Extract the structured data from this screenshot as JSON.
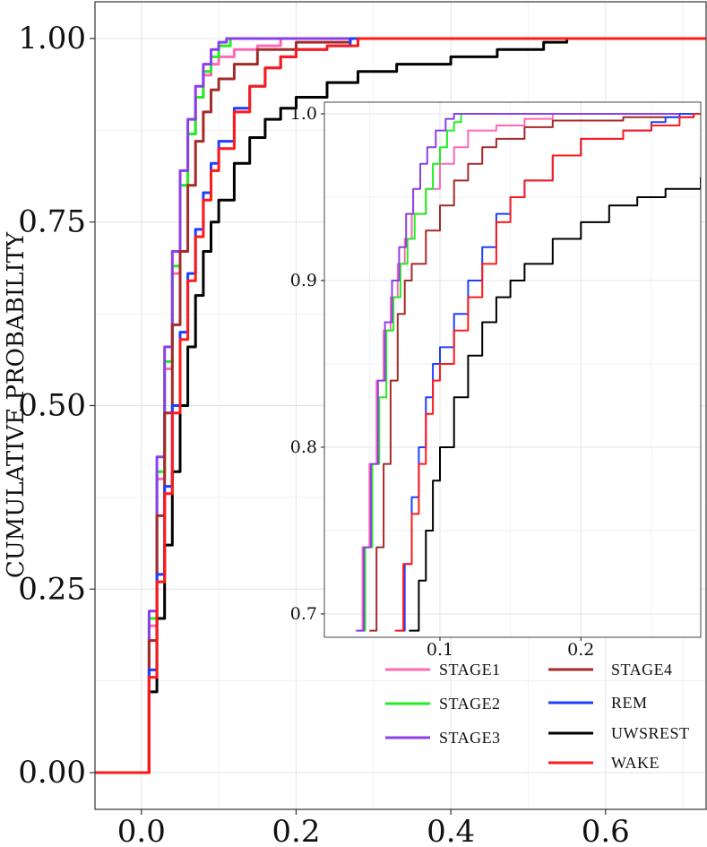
{
  "chart_data": [
    {
      "type": "line",
      "role": "main",
      "xlabel": "",
      "ylabel": "CUMULATIVE PROBABILITY",
      "xlim": [
        -0.06,
        0.73
      ],
      "ylim": [
        -0.05,
        1.05
      ],
      "x_ticks": [
        0.0,
        0.2,
        0.4,
        0.6
      ],
      "x_tick_labels": [
        "0.0",
        "0.2",
        "0.4",
        "0.6"
      ],
      "y_ticks": [
        0.0,
        0.25,
        0.5,
        0.75,
        1.0
      ],
      "y_tick_labels": [
        "0.00",
        "0.25",
        "0.50",
        "0.75",
        "1.00"
      ],
      "grid": true,
      "series": [
        {
          "name": "STAGE1",
          "color": "#ff69b4",
          "points": [
            [
              -0.06,
              0
            ],
            [
              0,
              0
            ],
            [
              0.01,
              0.2
            ],
            [
              0.02,
              0.4
            ],
            [
              0.03,
              0.55
            ],
            [
              0.04,
              0.68
            ],
            [
              0.05,
              0.8
            ],
            [
              0.06,
              0.87
            ],
            [
              0.07,
              0.92
            ],
            [
              0.08,
              0.95
            ],
            [
              0.09,
              0.965
            ],
            [
              0.1,
              0.975
            ],
            [
              0.12,
              0.985
            ],
            [
              0.15,
              0.99
            ],
            [
              0.18,
              1.0
            ],
            [
              0.73,
              1.0
            ]
          ]
        },
        {
          "name": "STAGE2",
          "color": "#22ee22",
          "points": [
            [
              -0.06,
              0
            ],
            [
              0,
              0
            ],
            [
              0.01,
              0.21
            ],
            [
              0.02,
              0.41
            ],
            [
              0.03,
              0.56
            ],
            [
              0.04,
              0.69
            ],
            [
              0.05,
              0.8
            ],
            [
              0.06,
              0.87
            ],
            [
              0.07,
              0.92
            ],
            [
              0.08,
              0.955
            ],
            [
              0.09,
              0.975
            ],
            [
              0.1,
              0.99
            ],
            [
              0.115,
              1.0
            ],
            [
              0.73,
              1.0
            ]
          ]
        },
        {
          "name": "STAGE3",
          "color": "#8b3fe8",
          "points": [
            [
              -0.06,
              0
            ],
            [
              0,
              0
            ],
            [
              0.01,
              0.22
            ],
            [
              0.02,
              0.43
            ],
            [
              0.03,
              0.58
            ],
            [
              0.04,
              0.71
            ],
            [
              0.05,
              0.82
            ],
            [
              0.06,
              0.89
            ],
            [
              0.07,
              0.935
            ],
            [
              0.08,
              0.965
            ],
            [
              0.09,
              0.985
            ],
            [
              0.1,
              0.995
            ],
            [
              0.11,
              1.0
            ],
            [
              0.73,
              1.0
            ]
          ]
        },
        {
          "name": "STAGE4",
          "color": "#a52a2a",
          "points": [
            [
              -0.06,
              0
            ],
            [
              0,
              0
            ],
            [
              0.01,
              0.18
            ],
            [
              0.02,
              0.35
            ],
            [
              0.03,
              0.49
            ],
            [
              0.04,
              0.61
            ],
            [
              0.05,
              0.71
            ],
            [
              0.06,
              0.8
            ],
            [
              0.07,
              0.86
            ],
            [
              0.08,
              0.9
            ],
            [
              0.09,
              0.93
            ],
            [
              0.1,
              0.945
            ],
            [
              0.12,
              0.965
            ],
            [
              0.15,
              0.985
            ],
            [
              0.2,
              0.995
            ],
            [
              0.27,
              1.0
            ],
            [
              0.73,
              1.0
            ]
          ]
        },
        {
          "name": "REM",
          "color": "#1f3fff",
          "points": [
            [
              -0.06,
              0
            ],
            [
              0,
              0
            ],
            [
              0.01,
              0.14
            ],
            [
              0.02,
              0.27
            ],
            [
              0.03,
              0.39
            ],
            [
              0.04,
              0.5
            ],
            [
              0.05,
              0.6
            ],
            [
              0.06,
              0.68
            ],
            [
              0.07,
              0.74
            ],
            [
              0.08,
              0.79
            ],
            [
              0.09,
              0.83
            ],
            [
              0.1,
              0.86
            ],
            [
              0.12,
              0.905
            ],
            [
              0.14,
              0.935
            ],
            [
              0.16,
              0.96
            ],
            [
              0.18,
              0.975
            ],
            [
              0.2,
              0.985
            ],
            [
              0.24,
              0.99
            ],
            [
              0.27,
              1.0
            ],
            [
              0.73,
              1.0
            ]
          ]
        },
        {
          "name": "UWSREST",
          "color": "#000000",
          "points": [
            [
              -0.06,
              0
            ],
            [
              0,
              0
            ],
            [
              0.01,
              0.11
            ],
            [
              0.02,
              0.21
            ],
            [
              0.03,
              0.31
            ],
            [
              0.04,
              0.41
            ],
            [
              0.05,
              0.5
            ],
            [
              0.06,
              0.58
            ],
            [
              0.07,
              0.65
            ],
            [
              0.08,
              0.71
            ],
            [
              0.09,
              0.75
            ],
            [
              0.1,
              0.78
            ],
            [
              0.12,
              0.83
            ],
            [
              0.14,
              0.865
            ],
            [
              0.16,
              0.89
            ],
            [
              0.18,
              0.905
            ],
            [
              0.2,
              0.92
            ],
            [
              0.24,
              0.94
            ],
            [
              0.28,
              0.955
            ],
            [
              0.33,
              0.965
            ],
            [
              0.4,
              0.975
            ],
            [
              0.46,
              0.985
            ],
            [
              0.52,
              0.995
            ],
            [
              0.55,
              1.0
            ],
            [
              0.73,
              1.0
            ]
          ]
        },
        {
          "name": "WAKE",
          "color": "#ff1a1a",
          "points": [
            [
              -0.06,
              0
            ],
            [
              0,
              0
            ],
            [
              0.01,
              0.13
            ],
            [
              0.02,
              0.26
            ],
            [
              0.03,
              0.38
            ],
            [
              0.04,
              0.49
            ],
            [
              0.05,
              0.59
            ],
            [
              0.06,
              0.67
            ],
            [
              0.07,
              0.73
            ],
            [
              0.08,
              0.78
            ],
            [
              0.09,
              0.82
            ],
            [
              0.1,
              0.85
            ],
            [
              0.12,
              0.9
            ],
            [
              0.14,
              0.935
            ],
            [
              0.16,
              0.96
            ],
            [
              0.18,
              0.975
            ],
            [
              0.2,
              0.985
            ],
            [
              0.24,
              0.99
            ],
            [
              0.28,
              1.0
            ],
            [
              0.73,
              1.0
            ]
          ]
        }
      ]
    },
    {
      "type": "line",
      "role": "inset",
      "xlabel": "",
      "ylabel": "",
      "xlim": [
        0.018,
        0.285
      ],
      "ylim": [
        0.686,
        1.007
      ],
      "x_ticks": [
        0.1,
        0.2
      ],
      "x_tick_labels": [
        "0.1",
        "0.2"
      ],
      "y_ticks": [
        0.7,
        0.8,
        0.9,
        1.0
      ],
      "y_tick_labels": [
        "0.7",
        "0.8",
        "0.9",
        "1.0"
      ],
      "grid": true,
      "series": [
        {
          "name": "STAGE1",
          "color": "#ff69b4",
          "points": [
            [
              0.04,
              0.69
            ],
            [
              0.045,
              0.74
            ],
            [
              0.05,
              0.79
            ],
            [
              0.055,
              0.84
            ],
            [
              0.06,
              0.87
            ],
            [
              0.065,
              0.89
            ],
            [
              0.07,
              0.91
            ],
            [
              0.075,
              0.925
            ],
            [
              0.08,
              0.94
            ],
            [
              0.09,
              0.955
            ],
            [
              0.1,
              0.97
            ],
            [
              0.11,
              0.98
            ],
            [
              0.12,
              0.99
            ],
            [
              0.14,
              0.993
            ],
            [
              0.16,
              0.997
            ],
            [
              0.18,
              1.0
            ],
            [
              0.285,
              1.0
            ]
          ]
        },
        {
          "name": "STAGE2",
          "color": "#22ee22",
          "points": [
            [
              0.042,
              0.69
            ],
            [
              0.047,
              0.74
            ],
            [
              0.052,
              0.79
            ],
            [
              0.057,
              0.83
            ],
            [
              0.062,
              0.87
            ],
            [
              0.067,
              0.89
            ],
            [
              0.072,
              0.91
            ],
            [
              0.077,
              0.925
            ],
            [
              0.082,
              0.94
            ],
            [
              0.09,
              0.955
            ],
            [
              0.095,
              0.97
            ],
            [
              0.1,
              0.98
            ],
            [
              0.105,
              0.99
            ],
            [
              0.11,
              0.995
            ],
            [
              0.115,
              1.0
            ],
            [
              0.285,
              1.0
            ]
          ]
        },
        {
          "name": "STAGE3",
          "color": "#8b3fe8",
          "points": [
            [
              0.041,
              0.69
            ],
            [
              0.046,
              0.74
            ],
            [
              0.051,
              0.79
            ],
            [
              0.056,
              0.84
            ],
            [
              0.061,
              0.875
            ],
            [
              0.066,
              0.9
            ],
            [
              0.071,
              0.92
            ],
            [
              0.076,
              0.94
            ],
            [
              0.081,
              0.955
            ],
            [
              0.086,
              0.97
            ],
            [
              0.091,
              0.98
            ],
            [
              0.097,
              0.99
            ],
            [
              0.104,
              0.997
            ],
            [
              0.11,
              1.0
            ],
            [
              0.285,
              1.0
            ]
          ]
        },
        {
          "name": "STAGE4",
          "color": "#a52a2a",
          "points": [
            [
              0.05,
              0.69
            ],
            [
              0.055,
              0.74
            ],
            [
              0.06,
              0.79
            ],
            [
              0.065,
              0.84
            ],
            [
              0.07,
              0.88
            ],
            [
              0.075,
              0.9
            ],
            [
              0.08,
              0.91
            ],
            [
              0.09,
              0.93
            ],
            [
              0.1,
              0.945
            ],
            [
              0.11,
              0.96
            ],
            [
              0.12,
              0.97
            ],
            [
              0.13,
              0.98
            ],
            [
              0.14,
              0.985
            ],
            [
              0.16,
              0.992
            ],
            [
              0.18,
              0.996
            ],
            [
              0.23,
              0.998
            ],
            [
              0.28,
              1.0
            ],
            [
              0.285,
              1.0
            ]
          ]
        },
        {
          "name": "REM",
          "color": "#1f3fff",
          "points": [
            [
              0.07,
              0.69
            ],
            [
              0.075,
              0.73
            ],
            [
              0.08,
              0.77
            ],
            [
              0.085,
              0.8
            ],
            [
              0.09,
              0.83
            ],
            [
              0.095,
              0.85
            ],
            [
              0.1,
              0.86
            ],
            [
              0.11,
              0.88
            ],
            [
              0.12,
              0.9
            ],
            [
              0.13,
              0.92
            ],
            [
              0.14,
              0.94
            ],
            [
              0.15,
              0.95
            ],
            [
              0.16,
              0.96
            ],
            [
              0.18,
              0.975
            ],
            [
              0.2,
              0.985
            ],
            [
              0.23,
              0.99
            ],
            [
              0.25,
              0.995
            ],
            [
              0.26,
              0.998
            ],
            [
              0.27,
              1.0
            ],
            [
              0.285,
              1.0
            ]
          ]
        },
        {
          "name": "UWSREST",
          "color": "#000000",
          "points": [
            [
              0.078,
              0.69
            ],
            [
              0.085,
              0.72
            ],
            [
              0.09,
              0.75
            ],
            [
              0.095,
              0.78
            ],
            [
              0.1,
              0.8
            ],
            [
              0.11,
              0.83
            ],
            [
              0.12,
              0.855
            ],
            [
              0.13,
              0.875
            ],
            [
              0.14,
              0.89
            ],
            [
              0.15,
              0.9
            ],
            [
              0.16,
              0.91
            ],
            [
              0.18,
              0.925
            ],
            [
              0.2,
              0.935
            ],
            [
              0.22,
              0.945
            ],
            [
              0.24,
              0.95
            ],
            [
              0.26,
              0.955
            ],
            [
              0.285,
              0.962
            ]
          ]
        },
        {
          "name": "WAKE",
          "color": "#ff1a1a",
          "points": [
            [
              0.068,
              0.69
            ],
            [
              0.074,
              0.73
            ],
            [
              0.08,
              0.76
            ],
            [
              0.085,
              0.79
            ],
            [
              0.09,
              0.82
            ],
            [
              0.095,
              0.84
            ],
            [
              0.1,
              0.85
            ],
            [
              0.11,
              0.87
            ],
            [
              0.12,
              0.89
            ],
            [
              0.13,
              0.91
            ],
            [
              0.14,
              0.935
            ],
            [
              0.15,
              0.95
            ],
            [
              0.16,
              0.96
            ],
            [
              0.18,
              0.975
            ],
            [
              0.2,
              0.985
            ],
            [
              0.23,
              0.99
            ],
            [
              0.25,
              0.993
            ],
            [
              0.27,
              0.998
            ],
            [
              0.28,
              1.0
            ],
            [
              0.285,
              1.0
            ]
          ]
        }
      ]
    }
  ],
  "legend": {
    "columns": [
      [
        "STAGE1",
        "STAGE2",
        "STAGE3"
      ],
      [
        "STAGE4",
        "REM",
        "UWSREST",
        "WAKE"
      ]
    ],
    "placement": "bottom-right"
  }
}
